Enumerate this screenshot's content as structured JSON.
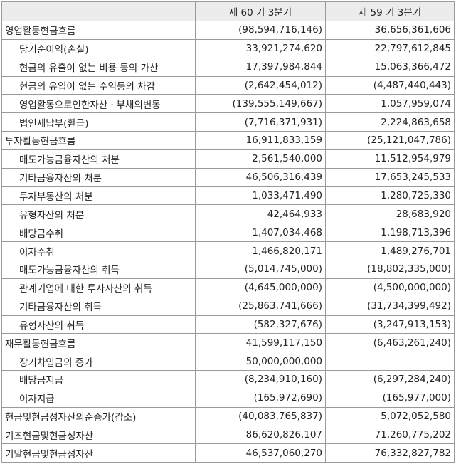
{
  "header": {
    "blank": "",
    "current": "제 60 기 3분기",
    "previous": "제 59 기 3분기"
  },
  "rows": [
    {
      "label": "영업활동현금흐름",
      "level": 0,
      "current": "(98,594,716,146)",
      "previous": "36,656,361,606"
    },
    {
      "label": "당기순이익(손실)",
      "level": 1,
      "current": "33,921,274,620",
      "previous": "22,797,612,845"
    },
    {
      "label": "현금의 유출이 없는 비용 등의 가산",
      "level": 1,
      "current": "17,397,984,844",
      "previous": "15,063,366,472"
    },
    {
      "label": "현금의 유입이 없는 수익등의 차감",
      "level": 1,
      "current": "(2,642,454,012)",
      "previous": "(4,487,440,443)"
    },
    {
      "label": "영업활동으로인한자산ㆍ부채의변동",
      "level": 1,
      "current": "(139,555,149,667)",
      "previous": "1,057,959,074"
    },
    {
      "label": "법인세납부(환급)",
      "level": 1,
      "current": "(7,716,371,931)",
      "previous": "2,224,863,658"
    },
    {
      "label": "투자활동현금흐름",
      "level": 0,
      "current": "16,911,833,159",
      "previous": "(25,121,047,786)"
    },
    {
      "label": "매도가능금융자산의 처분",
      "level": 1,
      "current": "2,561,540,000",
      "previous": "11,512,954,979"
    },
    {
      "label": "기타금융자산의 처분",
      "level": 1,
      "current": "46,506,316,439",
      "previous": "17,653,245,533"
    },
    {
      "label": "투자부동산의 처분",
      "level": 1,
      "current": "1,033,471,490",
      "previous": "1,280,725,330"
    },
    {
      "label": "유형자산의 처분",
      "level": 1,
      "current": "42,464,933",
      "previous": "28,683,920"
    },
    {
      "label": "배당금수취",
      "level": 1,
      "current": "1,407,034,468",
      "previous": "1,198,713,396"
    },
    {
      "label": "이자수취",
      "level": 1,
      "current": "1,466,820,171",
      "previous": "1,489,276,701"
    },
    {
      "label": "매도가능금융자산의 취득",
      "level": 1,
      "current": "(5,014,745,000)",
      "previous": "(18,802,335,000)"
    },
    {
      "label": "관계기업에 대한 투자자산의 취득",
      "level": 1,
      "current": "(4,645,000,000)",
      "previous": "(4,500,000,000)"
    },
    {
      "label": "기타금융자산의 취득",
      "level": 1,
      "current": "(25,863,741,666)",
      "previous": "(31,734,399,492)"
    },
    {
      "label": "유형자산의 취득",
      "level": 1,
      "current": "(582,327,676)",
      "previous": "(3,247,913,153)"
    },
    {
      "label": "재무활동현금흐름",
      "level": 0,
      "current": "41,599,117,150",
      "previous": "(6,463,261,240)"
    },
    {
      "label": "장기차입금의 증가",
      "level": 1,
      "current": "50,000,000,000",
      "previous": ""
    },
    {
      "label": "배당금지급",
      "level": 1,
      "current": "(8,234,910,160)",
      "previous": "(6,297,284,240)"
    },
    {
      "label": "이자지급",
      "level": 1,
      "current": "(165,972,690)",
      "previous": "(165,977,000)"
    },
    {
      "label": "현금및현금성자산의순증가(감소)",
      "level": 0,
      "current": "(40,083,765,837)",
      "previous": "5,072,052,580"
    },
    {
      "label": "기초현금및현금성자산",
      "level": 0,
      "current": "86,620,826,107",
      "previous": "71,260,775,202"
    },
    {
      "label": "기말현금및현금성자산",
      "level": 0,
      "current": "46,537,060,270",
      "previous": "76,332,827,782"
    }
  ]
}
